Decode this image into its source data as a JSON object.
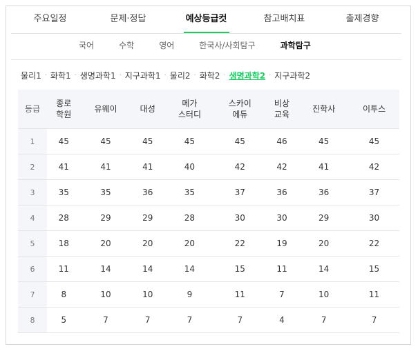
{
  "tabs": [
    {
      "label": "주요일정",
      "active": false
    },
    {
      "label": "문제·정답",
      "active": false
    },
    {
      "label": "예상등급컷",
      "active": true
    },
    {
      "label": "참고배치표",
      "active": false
    },
    {
      "label": "출제경향",
      "active": false
    }
  ],
  "subtabs": [
    {
      "label": "국어",
      "active": false
    },
    {
      "label": "수학",
      "active": false
    },
    {
      "label": "영어",
      "active": false
    },
    {
      "label": "한국사/사회탐구",
      "active": false
    },
    {
      "label": "과학탐구",
      "active": true
    }
  ],
  "subjects": [
    {
      "label": "물리1",
      "active": false
    },
    {
      "label": "화학1",
      "active": false
    },
    {
      "label": "생명과학1",
      "active": false
    },
    {
      "label": "지구과학1",
      "active": false
    },
    {
      "label": "물리2",
      "active": false
    },
    {
      "label": "화학2",
      "active": false
    },
    {
      "label": "생명과학2",
      "active": true
    },
    {
      "label": "지구과학2",
      "active": false
    }
  ],
  "subject_separator": "·",
  "table": {
    "grade_header": "등급",
    "columns": [
      [
        "종로",
        "학원"
      ],
      [
        "유웨이"
      ],
      [
        "대성"
      ],
      [
        "메가",
        "스터디"
      ],
      [
        "스카이",
        "에듀"
      ],
      [
        "비상",
        "교육"
      ],
      [
        "진학사"
      ],
      [
        "이투스"
      ]
    ],
    "rows": [
      {
        "grade": "1",
        "values": [
          "45",
          "45",
          "45",
          "45",
          "45",
          "46",
          "45",
          "45"
        ]
      },
      {
        "grade": "2",
        "values": [
          "41",
          "41",
          "41",
          "40",
          "42",
          "42",
          "41",
          "42"
        ]
      },
      {
        "grade": "3",
        "values": [
          "35",
          "35",
          "36",
          "35",
          "37",
          "36",
          "36",
          "37"
        ]
      },
      {
        "grade": "4",
        "values": [
          "28",
          "29",
          "29",
          "28",
          "30",
          "30",
          "29",
          "30"
        ]
      },
      {
        "grade": "5",
        "values": [
          "18",
          "20",
          "20",
          "20",
          "22",
          "19",
          "20",
          "22"
        ]
      },
      {
        "grade": "6",
        "values": [
          "11",
          "14",
          "14",
          "14",
          "15",
          "11",
          "14",
          "15"
        ]
      },
      {
        "grade": "7",
        "values": [
          "8",
          "10",
          "10",
          "9",
          "11",
          "7",
          "10",
          "11"
        ]
      },
      {
        "grade": "8",
        "values": [
          "5",
          "7",
          "7",
          "7",
          "7",
          "4",
          "7",
          "7"
        ]
      }
    ]
  },
  "colors": {
    "accent": "#19ce60",
    "header_bg": "#f4f6f9",
    "border": "#e5e5e5"
  }
}
